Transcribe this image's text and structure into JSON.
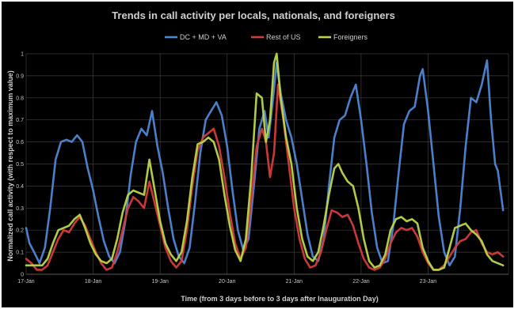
{
  "chart_data": {
    "type": "line",
    "title": "Trends in call activity per locals, nationals, and foreigners",
    "xlabel": "Time (from 3 days before to 3 days after Inauguration Day)",
    "ylabel": "Normalized call activity (with respect to maximum value)",
    "x_ticks": [
      "17-Jan",
      "18-Jan",
      "19-Jan",
      "20-Jan",
      "21-Jan",
      "22-Jan",
      "23-Jan"
    ],
    "y_ticks": [
      "0",
      "0.1",
      "0.2",
      "0.3",
      "0.4",
      "0.5",
      "0.6",
      "0.7",
      "0.8",
      "0.9",
      "1"
    ],
    "ylim": [
      0,
      1
    ],
    "xlim": [
      0,
      7
    ],
    "grid": true,
    "legend_position": "top-center",
    "series": [
      {
        "name": "DC + MD + VA",
        "color": "#4f86d4",
        "points": [
          [
            0.0,
            0.21
          ],
          [
            0.05,
            0.14
          ],
          [
            0.12,
            0.1
          ],
          [
            0.2,
            0.05
          ],
          [
            0.28,
            0.12
          ],
          [
            0.36,
            0.3
          ],
          [
            0.44,
            0.52
          ],
          [
            0.52,
            0.6
          ],
          [
            0.6,
            0.61
          ],
          [
            0.68,
            0.6
          ],
          [
            0.76,
            0.63
          ],
          [
            0.84,
            0.6
          ],
          [
            0.92,
            0.48
          ],
          [
            1.0,
            0.38
          ],
          [
            1.08,
            0.26
          ],
          [
            1.16,
            0.15
          ],
          [
            1.24,
            0.08
          ],
          [
            1.32,
            0.05
          ],
          [
            1.4,
            0.1
          ],
          [
            1.48,
            0.24
          ],
          [
            1.56,
            0.45
          ],
          [
            1.64,
            0.6
          ],
          [
            1.72,
            0.66
          ],
          [
            1.8,
            0.63
          ],
          [
            1.88,
            0.74
          ],
          [
            1.96,
            0.58
          ],
          [
            2.04,
            0.46
          ],
          [
            2.12,
            0.3
          ],
          [
            2.2,
            0.16
          ],
          [
            2.28,
            0.08
          ],
          [
            2.36,
            0.05
          ],
          [
            2.44,
            0.12
          ],
          [
            2.52,
            0.32
          ],
          [
            2.6,
            0.55
          ],
          [
            2.68,
            0.7
          ],
          [
            2.76,
            0.74
          ],
          [
            2.84,
            0.78
          ],
          [
            2.92,
            0.72
          ],
          [
            3.0,
            0.58
          ],
          [
            3.08,
            0.38
          ],
          [
            3.16,
            0.2
          ],
          [
            3.24,
            0.11
          ],
          [
            3.32,
            0.16
          ],
          [
            3.4,
            0.4
          ],
          [
            3.48,
            0.66
          ],
          [
            3.56,
            0.74
          ],
          [
            3.62,
            0.62
          ],
          [
            3.68,
            0.78
          ],
          [
            3.74,
            0.96
          ],
          [
            3.8,
            0.82
          ],
          [
            3.88,
            0.7
          ],
          [
            3.96,
            0.62
          ],
          [
            4.04,
            0.5
          ],
          [
            4.12,
            0.34
          ],
          [
            4.2,
            0.18
          ],
          [
            4.28,
            0.08
          ],
          [
            4.36,
            0.06
          ],
          [
            4.44,
            0.16
          ],
          [
            4.52,
            0.4
          ],
          [
            4.6,
            0.62
          ],
          [
            4.68,
            0.7
          ],
          [
            4.76,
            0.72
          ],
          [
            4.84,
            0.8
          ],
          [
            4.92,
            0.86
          ],
          [
            5.0,
            0.7
          ],
          [
            5.08,
            0.5
          ],
          [
            5.16,
            0.28
          ],
          [
            5.24,
            0.12
          ],
          [
            5.32,
            0.05
          ],
          [
            5.4,
            0.06
          ],
          [
            5.48,
            0.22
          ],
          [
            5.56,
            0.46
          ],
          [
            5.64,
            0.68
          ],
          [
            5.72,
            0.74
          ],
          [
            5.8,
            0.76
          ],
          [
            5.88,
            0.9
          ],
          [
            5.92,
            0.93
          ],
          [
            6.0,
            0.74
          ],
          [
            6.08,
            0.5
          ],
          [
            6.16,
            0.26
          ],
          [
            6.24,
            0.1
          ],
          [
            6.32,
            0.04
          ],
          [
            6.4,
            0.08
          ],
          [
            6.48,
            0.3
          ],
          [
            6.56,
            0.58
          ],
          [
            6.64,
            0.8
          ],
          [
            6.72,
            0.78
          ],
          [
            6.8,
            0.86
          ],
          [
            6.88,
            0.97
          ],
          [
            6.94,
            0.7
          ],
          [
            7.0,
            0.5
          ],
          [
            7.04,
            0.47
          ],
          [
            7.12,
            0.29
          ]
        ]
      },
      {
        "name": "Rest of US",
        "color": "#d63b3b",
        "points": [
          [
            0.0,
            0.07
          ],
          [
            0.08,
            0.05
          ],
          [
            0.16,
            0.02
          ],
          [
            0.24,
            0.02
          ],
          [
            0.32,
            0.04
          ],
          [
            0.4,
            0.1
          ],
          [
            0.48,
            0.16
          ],
          [
            0.56,
            0.2
          ],
          [
            0.64,
            0.19
          ],
          [
            0.72,
            0.23
          ],
          [
            0.8,
            0.26
          ],
          [
            0.88,
            0.22
          ],
          [
            0.96,
            0.16
          ],
          [
            1.04,
            0.1
          ],
          [
            1.12,
            0.05
          ],
          [
            1.2,
            0.02
          ],
          [
            1.28,
            0.03
          ],
          [
            1.36,
            0.1
          ],
          [
            1.44,
            0.2
          ],
          [
            1.52,
            0.3
          ],
          [
            1.6,
            0.35
          ],
          [
            1.68,
            0.33
          ],
          [
            1.76,
            0.3
          ],
          [
            1.84,
            0.42
          ],
          [
            1.92,
            0.32
          ],
          [
            2.0,
            0.22
          ],
          [
            2.08,
            0.12
          ],
          [
            2.16,
            0.06
          ],
          [
            2.24,
            0.03
          ],
          [
            2.32,
            0.06
          ],
          [
            2.4,
            0.2
          ],
          [
            2.48,
            0.4
          ],
          [
            2.56,
            0.56
          ],
          [
            2.64,
            0.62
          ],
          [
            2.72,
            0.64
          ],
          [
            2.8,
            0.66
          ],
          [
            2.88,
            0.58
          ],
          [
            2.96,
            0.44
          ],
          [
            3.04,
            0.28
          ],
          [
            3.12,
            0.14
          ],
          [
            3.2,
            0.07
          ],
          [
            3.28,
            0.12
          ],
          [
            3.36,
            0.34
          ],
          [
            3.44,
            0.58
          ],
          [
            3.52,
            0.66
          ],
          [
            3.58,
            0.6
          ],
          [
            3.64,
            0.44
          ],
          [
            3.7,
            0.55
          ],
          [
            3.76,
            0.86
          ],
          [
            3.84,
            0.7
          ],
          [
            3.92,
            0.5
          ],
          [
            4.0,
            0.3
          ],
          [
            4.08,
            0.16
          ],
          [
            4.16,
            0.07
          ],
          [
            4.24,
            0.03
          ],
          [
            4.32,
            0.04
          ],
          [
            4.4,
            0.1
          ],
          [
            4.48,
            0.2
          ],
          [
            4.56,
            0.29
          ],
          [
            4.64,
            0.28
          ],
          [
            4.72,
            0.26
          ],
          [
            4.8,
            0.27
          ],
          [
            4.88,
            0.22
          ],
          [
            4.96,
            0.14
          ],
          [
            5.04,
            0.07
          ],
          [
            5.12,
            0.03
          ],
          [
            5.2,
            0.02
          ],
          [
            5.28,
            0.03
          ],
          [
            5.36,
            0.07
          ],
          [
            5.44,
            0.14
          ],
          [
            5.52,
            0.19
          ],
          [
            5.6,
            0.21
          ],
          [
            5.68,
            0.2
          ],
          [
            5.76,
            0.21
          ],
          [
            5.84,
            0.17
          ],
          [
            5.92,
            0.1
          ],
          [
            6.0,
            0.05
          ],
          [
            6.08,
            0.02
          ],
          [
            6.16,
            0.02
          ],
          [
            6.24,
            0.04
          ],
          [
            6.32,
            0.08
          ],
          [
            6.4,
            0.12
          ],
          [
            6.48,
            0.15
          ],
          [
            6.56,
            0.16
          ],
          [
            6.64,
            0.19
          ],
          [
            6.72,
            0.2
          ],
          [
            6.8,
            0.14
          ],
          [
            6.88,
            0.1
          ],
          [
            6.96,
            0.09
          ],
          [
            7.04,
            0.1
          ],
          [
            7.12,
            0.08
          ]
        ]
      },
      {
        "name": "Foreigners",
        "color": "#b9d64a",
        "points": [
          [
            0.0,
            0.04
          ],
          [
            0.08,
            0.04
          ],
          [
            0.16,
            0.04
          ],
          [
            0.24,
            0.04
          ],
          [
            0.32,
            0.07
          ],
          [
            0.4,
            0.14
          ],
          [
            0.48,
            0.2
          ],
          [
            0.56,
            0.21
          ],
          [
            0.64,
            0.22
          ],
          [
            0.72,
            0.25
          ],
          [
            0.8,
            0.27
          ],
          [
            0.88,
            0.21
          ],
          [
            0.96,
            0.14
          ],
          [
            1.04,
            0.09
          ],
          [
            1.12,
            0.06
          ],
          [
            1.2,
            0.05
          ],
          [
            1.28,
            0.07
          ],
          [
            1.36,
            0.16
          ],
          [
            1.44,
            0.28
          ],
          [
            1.52,
            0.36
          ],
          [
            1.6,
            0.38
          ],
          [
            1.68,
            0.37
          ],
          [
            1.76,
            0.36
          ],
          [
            1.84,
            0.52
          ],
          [
            1.92,
            0.38
          ],
          [
            2.0,
            0.24
          ],
          [
            2.08,
            0.14
          ],
          [
            2.16,
            0.09
          ],
          [
            2.24,
            0.06
          ],
          [
            2.32,
            0.1
          ],
          [
            2.4,
            0.24
          ],
          [
            2.48,
            0.44
          ],
          [
            2.56,
            0.59
          ],
          [
            2.64,
            0.6
          ],
          [
            2.72,
            0.62
          ],
          [
            2.8,
            0.6
          ],
          [
            2.88,
            0.52
          ],
          [
            2.96,
            0.36
          ],
          [
            3.04,
            0.22
          ],
          [
            3.12,
            0.11
          ],
          [
            3.2,
            0.06
          ],
          [
            3.28,
            0.16
          ],
          [
            3.36,
            0.44
          ],
          [
            3.44,
            0.82
          ],
          [
            3.52,
            0.8
          ],
          [
            3.58,
            0.6
          ],
          [
            3.64,
            0.7
          ],
          [
            3.7,
            0.96
          ],
          [
            3.74,
            1.0
          ],
          [
            3.8,
            0.8
          ],
          [
            3.88,
            0.62
          ],
          [
            3.96,
            0.5
          ],
          [
            4.04,
            0.3
          ],
          [
            4.12,
            0.16
          ],
          [
            4.2,
            0.08
          ],
          [
            4.28,
            0.06
          ],
          [
            4.36,
            0.1
          ],
          [
            4.44,
            0.22
          ],
          [
            4.52,
            0.36
          ],
          [
            4.6,
            0.48
          ],
          [
            4.66,
            0.5
          ],
          [
            4.72,
            0.46
          ],
          [
            4.8,
            0.42
          ],
          [
            4.88,
            0.4
          ],
          [
            4.96,
            0.3
          ],
          [
            5.04,
            0.16
          ],
          [
            5.12,
            0.06
          ],
          [
            5.2,
            0.03
          ],
          [
            5.28,
            0.04
          ],
          [
            5.36,
            0.09
          ],
          [
            5.44,
            0.2
          ],
          [
            5.52,
            0.25
          ],
          [
            5.6,
            0.26
          ],
          [
            5.68,
            0.24
          ],
          [
            5.76,
            0.25
          ],
          [
            5.84,
            0.23
          ],
          [
            5.92,
            0.12
          ],
          [
            6.0,
            0.06
          ],
          [
            6.08,
            0.02
          ],
          [
            6.16,
            0.02
          ],
          [
            6.24,
            0.03
          ],
          [
            6.32,
            0.12
          ],
          [
            6.4,
            0.21
          ],
          [
            6.48,
            0.22
          ],
          [
            6.56,
            0.23
          ],
          [
            6.64,
            0.2
          ],
          [
            6.72,
            0.18
          ],
          [
            6.8,
            0.15
          ],
          [
            6.88,
            0.09
          ],
          [
            6.96,
            0.06
          ],
          [
            7.04,
            0.05
          ],
          [
            7.12,
            0.04
          ]
        ]
      }
    ]
  }
}
